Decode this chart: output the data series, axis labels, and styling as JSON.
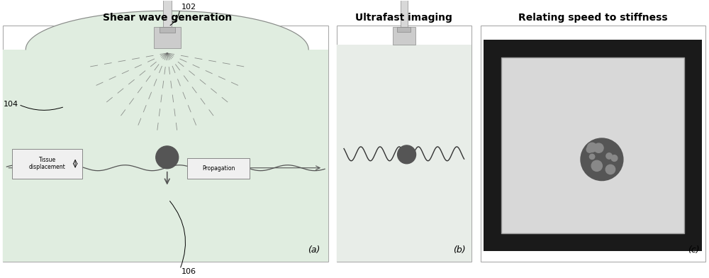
{
  "bg_color": "#f5f5f5",
  "border_color": "#aaaaaa",
  "title_a": "Shear wave generation",
  "title_b": "Ultrafast imaging",
  "title_c": "Relating speed to stiffness",
  "label_a": "(a)",
  "label_b": "(b)",
  "label_c": "(c)",
  "label_102": "102",
  "label_104": "104",
  "label_106": "106",
  "tissue_text": "Tissue\ndisplacement",
  "propagation_text": "Propagation",
  "probe_color": "#c8c8c8",
  "tissue_color": "#e0ede0",
  "probe_head_color": "#d5d5d5",
  "dark_circle_color": "#555555",
  "wave_color": "#333333",
  "arrow_color": "#555555",
  "box_bg": "#f0f0f0",
  "box_border": "#888888"
}
